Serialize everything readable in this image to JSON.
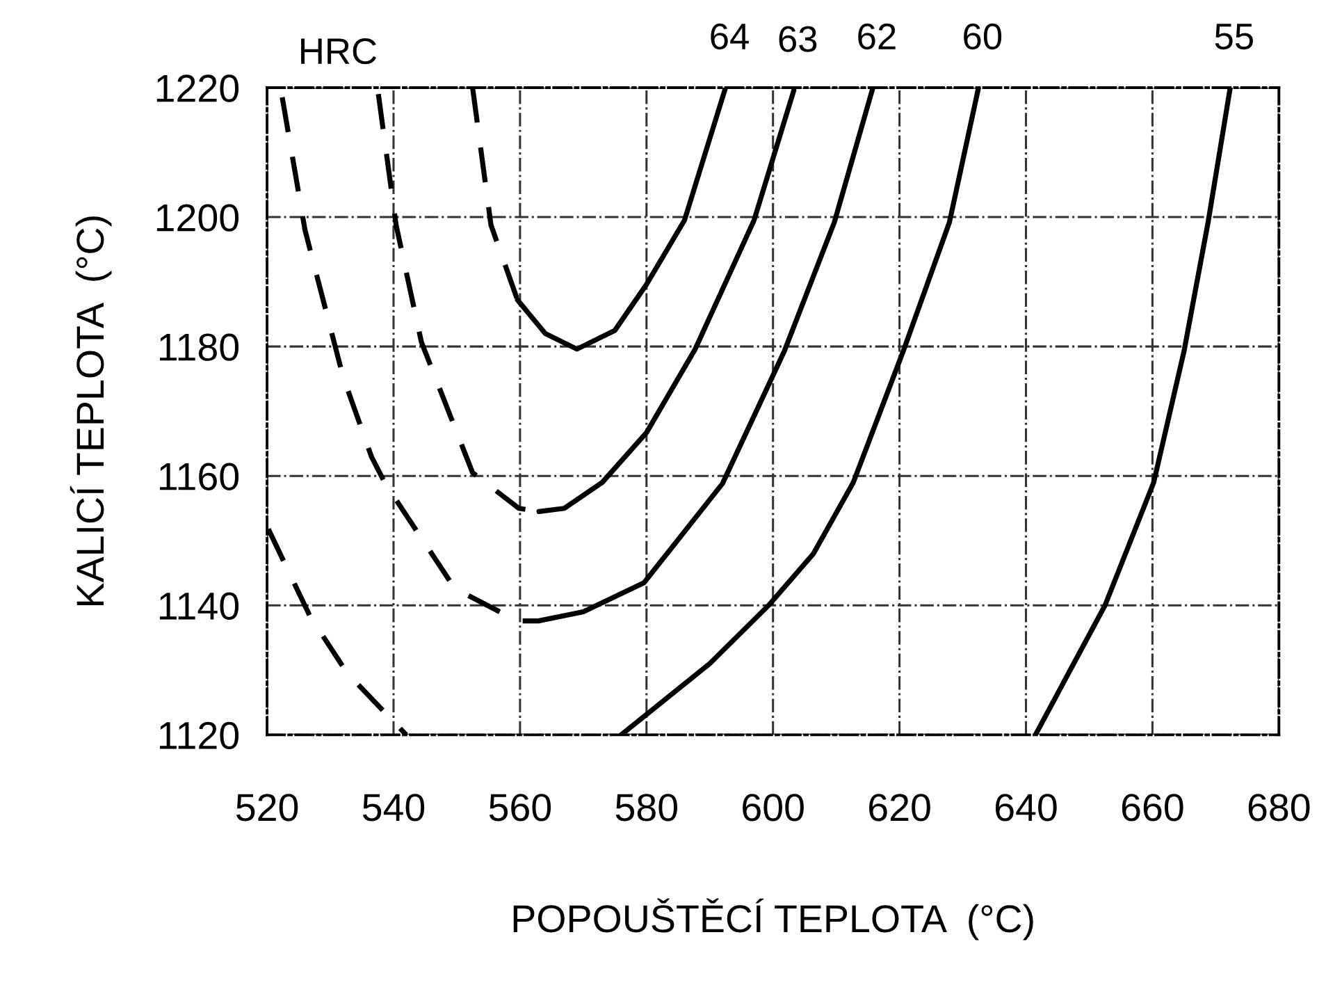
{
  "chart_data": {
    "type": "line",
    "xlabel": "POPOUŠTĚCÍ TEPLOTA  (°C)",
    "ylabel": "KALICÍ TEPLOTA  (°C)",
    "annotations": [
      "HRC"
    ],
    "xlim": [
      520,
      680
    ],
    "xticks": [
      520,
      540,
      560,
      580,
      600,
      620,
      640,
      660,
      680
    ],
    "ylim": [
      1120,
      1220
    ],
    "yticks": [
      1120,
      1140,
      1160,
      1180,
      1200,
      1220
    ],
    "grid": true,
    "legend": false,
    "marker": "none",
    "series": [
      {
        "color": "#000000",
        "line_style": "dashed",
        "x": [
          552.5,
          555.4,
          559.6
        ],
        "values": [
          1220,
          1198.8,
          1187.2
        ]
      },
      {
        "name": "64",
        "color": "#000000",
        "line_style": "solid",
        "x": [
          559.6,
          564,
          569,
          575,
          580,
          586,
          592.5
        ],
        "values": [
          1187.2,
          1182,
          1179.6,
          1182.5,
          1189.6,
          1199.5,
          1220
        ]
      },
      {
        "color": "#000000",
        "line_style": "dashed",
        "x": [
          537.6,
          540.4,
          544.4,
          552.5,
          559.8,
          563
        ],
        "values": [
          1219,
          1198.8,
          1180.7,
          1160.5,
          1155,
          1154.5
        ]
      },
      {
        "name": "63",
        "color": "#000000",
        "line_style": "solid",
        "x": [
          563,
          567,
          573,
          580,
          587.7,
          597,
          603.3
        ],
        "values": [
          1154.5,
          1155,
          1159,
          1166.7,
          1179.6,
          1199.5,
          1219.6
        ]
      },
      {
        "color": "#000000",
        "line_style": "dashed",
        "x": [
          522.4,
          526,
          532,
          536.5,
          538.7,
          549.7,
          559.6,
          562.9
        ],
        "values": [
          1218.5,
          1198,
          1175.4,
          1163,
          1158.8,
          1142.6,
          1137.6,
          1137.6
        ]
      },
      {
        "name": "62",
        "color": "#000000",
        "line_style": "solid",
        "x": [
          562.9,
          570,
          579.6,
          592,
          601.8,
          609.7,
          615.8
        ],
        "values": [
          1137.6,
          1139,
          1143.5,
          1158.8,
          1179.3,
          1199.2,
          1220
        ]
      },
      {
        "color": "#000000",
        "line_style": "dashed",
        "x": [
          520.2,
          526.8,
          532.7,
          542
        ],
        "values": [
          1151.8,
          1138.3,
          1129.5,
          1120
        ]
      },
      {
        "name": "60",
        "color": "#000000",
        "line_style": "solid",
        "x": [
          576,
          590,
          599.3,
          606.4,
          612.7,
          620.6,
          627.9,
          632.5
        ],
        "values": [
          1120,
          1131,
          1140,
          1148,
          1159,
          1179.3,
          1199.2,
          1220
        ]
      },
      {
        "name": "55",
        "color": "#000000",
        "line_style": "solid",
        "x": [
          641.5,
          647,
          652.5,
          660.2,
          665,
          668.8,
          672.3
        ],
        "values": [
          1120,
          1130,
          1140,
          1159,
          1179.3,
          1199.2,
          1220
        ]
      }
    ]
  }
}
